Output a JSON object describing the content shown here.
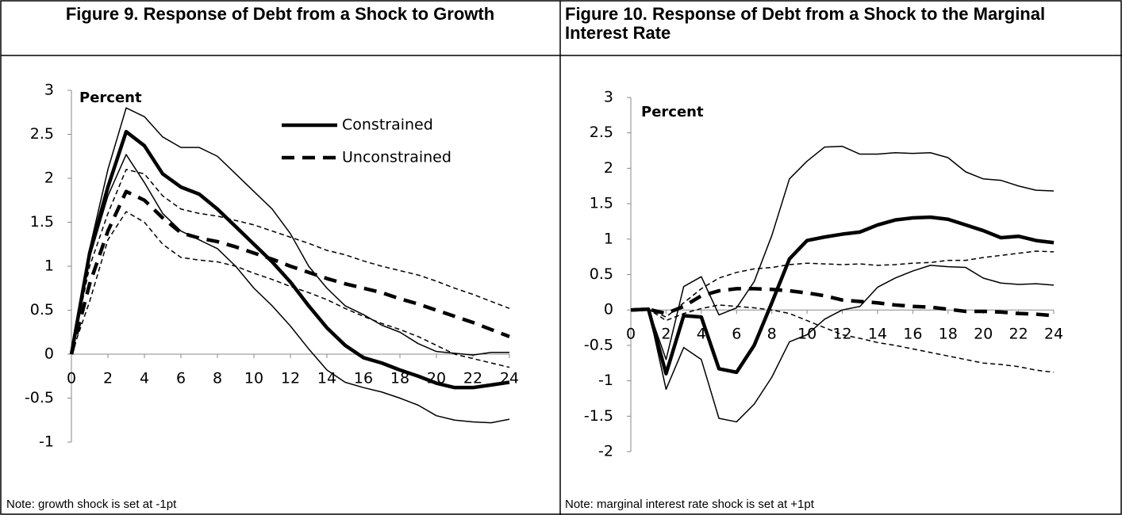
{
  "chart_data": [
    {
      "type": "line",
      "title": "Figure 9. Response of Debt from a Shock to Growth",
      "note": "Note: growth shock is set at -1pt",
      "ylabel": "Percent",
      "x": [
        0,
        1,
        2,
        3,
        4,
        5,
        6,
        7,
        8,
        9,
        10,
        11,
        12,
        13,
        14,
        15,
        16,
        17,
        18,
        19,
        20,
        21,
        22,
        23,
        24
      ],
      "xlim": [
        0,
        24
      ],
      "xticks": [
        0,
        2,
        4,
        6,
        8,
        10,
        12,
        14,
        16,
        18,
        20,
        22,
        24
      ],
      "ylim": [
        -1,
        3
      ],
      "yticks": [
        -1,
        -0.5,
        0,
        0.5,
        1,
        1.5,
        2,
        2.5,
        3
      ],
      "legend": "upper right",
      "series": [
        {
          "name": "Constrained",
          "color": "#000000",
          "width": 4.5,
          "dash": false,
          "values": [
            0,
            1.15,
            1.9,
            2.53,
            2.37,
            2.05,
            1.9,
            1.82,
            1.65,
            1.45,
            1.25,
            1.05,
            0.82,
            0.55,
            0.3,
            0.1,
            -0.04,
            -0.1,
            -0.18,
            -0.25,
            -0.33,
            -0.38,
            -0.38,
            -0.35,
            -0.32
          ]
        },
        {
          "name": "Unconstrained",
          "color": "#000000",
          "width": 4.5,
          "dash": true,
          "values": [
            0,
            0.8,
            1.4,
            1.85,
            1.75,
            1.55,
            1.38,
            1.32,
            1.28,
            1.22,
            1.15,
            1.08,
            1.0,
            0.93,
            0.86,
            0.8,
            0.75,
            0.7,
            0.63,
            0.57,
            0.5,
            0.43,
            0.36,
            0.28,
            0.2
          ]
        },
        {
          "color": "#000000",
          "width": 1.5,
          "dash": false,
          "values": [
            0,
            1.2,
            2.1,
            2.8,
            2.7,
            2.47,
            2.35,
            2.35,
            2.25,
            2.05,
            1.85,
            1.65,
            1.37,
            1.0,
            0.75,
            0.55,
            0.45,
            0.33,
            0.25,
            0.12,
            0.03,
            0.01,
            -0.01,
            0.02,
            0.02
          ]
        },
        {
          "color": "#000000",
          "width": 1.5,
          "dash": false,
          "values": [
            0,
            1.1,
            1.8,
            2.27,
            1.95,
            1.6,
            1.4,
            1.3,
            1.2,
            1.0,
            0.75,
            0.55,
            0.32,
            0.06,
            -0.18,
            -0.32,
            -0.38,
            -0.43,
            -0.5,
            -0.58,
            -0.7,
            -0.75,
            -0.77,
            -0.78,
            -0.74
          ]
        },
        {
          "color": "#000000",
          "width": 1.5,
          "dash": true,
          "values": [
            0,
            1.0,
            1.6,
            2.1,
            2.05,
            1.8,
            1.65,
            1.6,
            1.57,
            1.52,
            1.47,
            1.4,
            1.33,
            1.26,
            1.18,
            1.13,
            1.06,
            1.0,
            0.95,
            0.9,
            0.83,
            0.75,
            0.68,
            0.6,
            0.52
          ]
        },
        {
          "color": "#000000",
          "width": 1.5,
          "dash": true,
          "values": [
            0,
            0.6,
            1.3,
            1.62,
            1.5,
            1.25,
            1.1,
            1.07,
            1.05,
            1.0,
            0.92,
            0.85,
            0.77,
            0.7,
            0.62,
            0.52,
            0.43,
            0.35,
            0.28,
            0.2,
            0.1,
            0.0,
            -0.05,
            -0.1,
            -0.15
          ]
        }
      ]
    },
    {
      "type": "line",
      "title": "Figure 10. Response of Debt from a Shock to the Marginal Interest Rate",
      "note": "Note: marginal interest rate shock is set at +1pt",
      "ylabel": "Percent",
      "x": [
        0,
        1,
        2,
        3,
        4,
        5,
        6,
        7,
        8,
        9,
        10,
        11,
        12,
        13,
        14,
        15,
        16,
        17,
        18,
        19,
        20,
        21,
        22,
        23,
        24
      ],
      "xlim": [
        0,
        24
      ],
      "xticks": [
        0,
        2,
        4,
        6,
        8,
        10,
        12,
        14,
        16,
        18,
        20,
        22,
        24
      ],
      "ylim": [
        -2,
        3
      ],
      "yticks": [
        -2,
        -1.5,
        -1,
        -0.5,
        0,
        0.5,
        1,
        1.5,
        2,
        2.5,
        3
      ],
      "series": [
        {
          "color": "#000000",
          "width": 4.5,
          "dash": false,
          "values": [
            0,
            0.01,
            -0.9,
            -0.08,
            -0.1,
            -0.83,
            -0.88,
            -0.5,
            0.1,
            0.72,
            0.98,
            1.03,
            1.07,
            1.1,
            1.2,
            1.27,
            1.3,
            1.31,
            1.28,
            1.2,
            1.12,
            1.02,
            1.04,
            0.98,
            0.95
          ]
        },
        {
          "color": "#000000",
          "width": 1.5,
          "dash": false,
          "values": [
            0,
            0.01,
            -0.7,
            0.33,
            0.47,
            -0.07,
            0.03,
            0.4,
            1.05,
            1.85,
            2.1,
            2.3,
            2.31,
            2.2,
            2.2,
            2.22,
            2.21,
            2.22,
            2.15,
            1.95,
            1.85,
            1.83,
            1.75,
            1.69,
            1.68
          ]
        },
        {
          "color": "#000000",
          "width": 1.5,
          "dash": false,
          "values": [
            0,
            0.01,
            -1.12,
            -0.53,
            -0.7,
            -1.53,
            -1.58,
            -1.33,
            -0.95,
            -0.45,
            -0.35,
            -0.13,
            0.0,
            0.05,
            0.32,
            0.45,
            0.55,
            0.63,
            0.61,
            0.6,
            0.45,
            0.38,
            0.36,
            0.37,
            0.35
          ]
        },
        {
          "color": "#000000",
          "width": 4.5,
          "dash": true,
          "values": [
            0,
            0.01,
            -0.05,
            0.05,
            0.2,
            0.27,
            0.3,
            0.3,
            0.29,
            0.27,
            0.24,
            0.2,
            0.14,
            0.12,
            0.1,
            0.07,
            0.05,
            0.04,
            0.01,
            -0.02,
            -0.02,
            -0.03,
            -0.05,
            -0.06,
            -0.08
          ]
        },
        {
          "color": "#000000",
          "width": 1.5,
          "dash": true,
          "values": [
            0,
            0.01,
            -0.1,
            0.1,
            0.3,
            0.45,
            0.53,
            0.58,
            0.6,
            0.64,
            0.66,
            0.65,
            0.64,
            0.65,
            0.63,
            0.64,
            0.66,
            0.67,
            0.7,
            0.7,
            0.74,
            0.77,
            0.8,
            0.83,
            0.82
          ]
        },
        {
          "color": "#000000",
          "width": 1.5,
          "dash": true,
          "values": [
            0,
            0.01,
            -0.15,
            -0.05,
            0.02,
            0.07,
            0.05,
            0.03,
            0.0,
            -0.05,
            -0.15,
            -0.25,
            -0.35,
            -0.4,
            -0.46,
            -0.5,
            -0.55,
            -0.6,
            -0.65,
            -0.7,
            -0.75,
            -0.77,
            -0.8,
            -0.85,
            -0.88
          ]
        }
      ]
    }
  ]
}
